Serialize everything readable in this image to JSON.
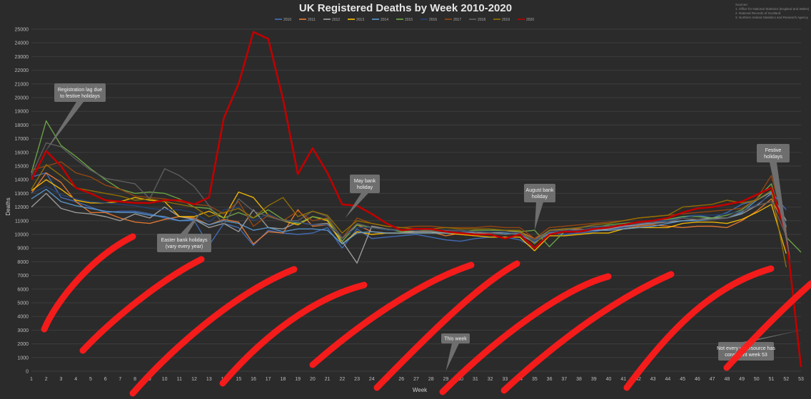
{
  "chart_data": {
    "type": "line",
    "title": "UK Registered Deaths by Week 2010-2020",
    "xlabel": "Week",
    "ylabel": "Deaths",
    "x": [
      1,
      2,
      3,
      4,
      5,
      6,
      7,
      8,
      9,
      10,
      11,
      12,
      13,
      14,
      15,
      16,
      17,
      18,
      19,
      20,
      21,
      22,
      23,
      24,
      25,
      26,
      27,
      28,
      29,
      30,
      31,
      32,
      33,
      34,
      35,
      36,
      37,
      38,
      39,
      40,
      41,
      42,
      43,
      44,
      45,
      46,
      47,
      48,
      49,
      50,
      51,
      52,
      53
    ],
    "ylim": [
      0,
      25000
    ],
    "yticks": [
      0,
      1000,
      2000,
      3000,
      4000,
      5000,
      6000,
      7000,
      8000,
      9000,
      10000,
      11000,
      12000,
      13000,
      14000,
      15000,
      16000,
      17000,
      18000,
      19000,
      20000,
      21000,
      22000,
      23000,
      24000,
      25000
    ],
    "grid": true,
    "legend_position": "top-center",
    "sources": {
      "heading": "Sources:",
      "items": [
        "1. Office for National Statistics (England and Wales)",
        "2. National Records of Scotland",
        "3. Northern Ireland Statistics and Research Agency"
      ]
    },
    "annotations": [
      {
        "text": "Registration lag due to festive holidays",
        "lines": [
          "Registration lag due",
          "to festive holidays"
        ]
      },
      {
        "text": "Easter bank holidays (vary every year)",
        "lines": [
          "Easter bank holidays",
          "(vary every year)"
        ]
      },
      {
        "text": "May bank holiday",
        "lines": [
          "May bank",
          "holiday"
        ]
      },
      {
        "text": "August bank holiday",
        "lines": [
          "August bank",
          "holiday"
        ]
      },
      {
        "text": "Festive holidays",
        "lines": [
          "Festive",
          "holidays"
        ]
      },
      {
        "text": "This week",
        "lines": [
          "This week"
        ]
      },
      {
        "text": "Not every year/source has consistent week 53",
        "lines": [
          "Not every year/source has",
          "consistent week 53"
        ]
      }
    ],
    "series": [
      {
        "name": "2010",
        "color": "#4472c4",
        "values": [
          14200,
          14500,
          12700,
          12400,
          12000,
          11600,
          11700,
          11700,
          11500,
          11200,
          11000,
          11000,
          9200,
          10800,
          10500,
          9200,
          10300,
          10100,
          10000,
          10100,
          10500,
          9000,
          10400,
          9700,
          9800,
          9900,
          10000,
          9800,
          9600,
          9500,
          9700,
          9800,
          9800,
          9600,
          9000,
          10100,
          10000,
          10100,
          10200,
          10400,
          10500,
          10700,
          10900,
          11000,
          11300,
          11400,
          11200,
          11600,
          12200,
          12500,
          13100,
          11800,
          null
        ]
      },
      {
        "name": "2011",
        "color": "#ed7d31",
        "values": [
          13000,
          14500,
          13800,
          12400,
          11600,
          11600,
          11200,
          10900,
          10800,
          11100,
          11300,
          11200,
          10700,
          11100,
          10900,
          9300,
          10200,
          10100,
          11800,
          10600,
          10700,
          9700,
          10700,
          10200,
          10100,
          10100,
          10200,
          10200,
          9900,
          10100,
          10000,
          10100,
          10200,
          10200,
          9700,
          10200,
          10300,
          10400,
          10300,
          10300,
          10400,
          10600,
          10700,
          10600,
          10500,
          10600,
          10600,
          10500,
          11000,
          11700,
          12600,
          10500,
          null
        ]
      },
      {
        "name": "2012",
        "color": "#a5a5a5",
        "values": [
          12000,
          13000,
          11900,
          11600,
          11500,
          11300,
          11000,
          11500,
          11200,
          12000,
          11300,
          11100,
          10500,
          10800,
          10200,
          11800,
          10500,
          10400,
          10900,
          10700,
          10800,
          9500,
          7900,
          10600,
          10400,
          10200,
          10200,
          10200,
          10100,
          10200,
          10100,
          10100,
          10000,
          10100,
          9500,
          10300,
          10400,
          10300,
          10300,
          10400,
          10600,
          10700,
          10800,
          10900,
          11000,
          11100,
          11200,
          11200,
          11500,
          12100,
          13000,
          11000,
          null
        ]
      },
      {
        "name": "2013",
        "color": "#ffc000",
        "values": [
          13200,
          14000,
          13300,
          12500,
          12300,
          12300,
          12400,
          12700,
          12500,
          12400,
          11300,
          11300,
          11700,
          11200,
          13100,
          12700,
          11400,
          11000,
          10700,
          11300,
          11000,
          9300,
          10200,
          10000,
          10100,
          10100,
          10100,
          10100,
          10100,
          10000,
          9900,
          9800,
          9800,
          9800,
          8800,
          9900,
          9900,
          10000,
          10100,
          10100,
          10400,
          10500,
          10500,
          10500,
          10800,
          10900,
          10900,
          10800,
          11100,
          11600,
          12200,
          8600,
          null
        ]
      },
      {
        "name": "2014",
        "color": "#5b9bd5",
        "values": [
          12600,
          13300,
          12400,
          12100,
          11900,
          11700,
          11600,
          11600,
          11400,
          11300,
          11000,
          11100,
          10700,
          11000,
          10800,
          10300,
          10500,
          10200,
          10400,
          10400,
          10300,
          9300,
          10100,
          10200,
          10100,
          10100,
          10100,
          10100,
          10100,
          10100,
          10200,
          10100,
          10100,
          10000,
          9400,
          10100,
          10200,
          10200,
          10300,
          10300,
          10400,
          10500,
          10600,
          10800,
          11000,
          11000,
          11100,
          11200,
          11600,
          12500,
          13100,
          10600,
          null
        ]
      },
      {
        "name": "2015",
        "color": "#70ad47",
        "values": [
          14500,
          18300,
          16500,
          15700,
          14800,
          14000,
          13300,
          13000,
          13100,
          13000,
          12600,
          12000,
          11900,
          11200,
          11600,
          11200,
          11800,
          11100,
          10800,
          11300,
          11100,
          9500,
          10700,
          10500,
          10400,
          10200,
          10300,
          10300,
          10200,
          10200,
          10300,
          10300,
          10300,
          10200,
          10300,
          9100,
          10200,
          10300,
          10500,
          10700,
          10800,
          10900,
          11000,
          11100,
          11300,
          11300,
          11200,
          11400,
          11800,
          12600,
          13700,
          9800,
          8700
        ]
      },
      {
        "name": "2016",
        "color": "#264478",
        "values": [
          13000,
          13500,
          12900,
          12600,
          12400,
          12300,
          12200,
          12100,
          11900,
          11800,
          11800,
          11600,
          10900,
          11800,
          12000,
          11000,
          11500,
          11000,
          10900,
          10700,
          10700,
          9800,
          10500,
          10500,
          10300,
          10300,
          10300,
          10400,
          10300,
          10200,
          10200,
          10200,
          10200,
          10100,
          9500,
          10200,
          10300,
          10300,
          10500,
          10600,
          10700,
          10800,
          11000,
          11000,
          11200,
          11400,
          11400,
          11500,
          11700,
          12200,
          12900,
          10800,
          null
        ]
      },
      {
        "name": "2017",
        "color": "#9e480e",
        "values": [
          14700,
          15000,
          15300,
          14500,
          14200,
          13600,
          13300,
          12800,
          12700,
          12600,
          12400,
          12200,
          12100,
          11500,
          12400,
          10600,
          11400,
          11000,
          11700,
          11000,
          11200,
          9700,
          11200,
          10800,
          10600,
          10500,
          10600,
          10600,
          10500,
          10500,
          10500,
          10600,
          10500,
          10500,
          9700,
          10500,
          10600,
          10700,
          10800,
          10900,
          11000,
          11200,
          11300,
          11400,
          11500,
          11600,
          11700,
          11800,
          11900,
          12600,
          14300,
          10300,
          null
        ]
      },
      {
        "name": "2018",
        "color": "#636363",
        "values": [
          14300,
          16700,
          16400,
          15500,
          14700,
          14100,
          13900,
          13700,
          12600,
          14800,
          14300,
          13500,
          12100,
          10700,
          12600,
          11700,
          11300,
          11000,
          11000,
          11700,
          11300,
          9700,
          10800,
          10500,
          10400,
          10300,
          10400,
          10300,
          10300,
          10300,
          10200,
          10100,
          10000,
          10100,
          9600,
          10300,
          10300,
          10500,
          10600,
          10600,
          10700,
          10800,
          10900,
          10900,
          11200,
          11100,
          11100,
          11200,
          11700,
          12100,
          12400,
          9900,
          null
        ]
      },
      {
        "name": "2019",
        "color": "#997300",
        "values": [
          13300,
          15100,
          14300,
          13400,
          13200,
          13000,
          12800,
          12500,
          12600,
          12400,
          12200,
          12000,
          11300,
          11600,
          11900,
          11200,
          12100,
          12700,
          11300,
          11700,
          11400,
          10100,
          11000,
          10800,
          10600,
          10500,
          10400,
          10400,
          10500,
          10400,
          10400,
          10400,
          10300,
          10300,
          9300,
          10300,
          10400,
          10500,
          10700,
          10800,
          11000,
          11200,
          11300,
          11400,
          12000,
          12100,
          12200,
          12500,
          12300,
          12500,
          13200,
          7600,
          null
        ]
      },
      {
        "name": "2020",
        "color": "#c00000",
        "values": [
          14000,
          16100,
          15000,
          13400,
          13000,
          12500,
          12400,
          12300,
          12300,
          12500,
          12500,
          12200,
          12700,
          18500,
          21000,
          24800,
          24300,
          19900,
          14400,
          16300,
          14500,
          12200,
          12100,
          11500,
          10800,
          10300,
          10400,
          10400,
          10200,
          10100,
          10000,
          10000,
          9700,
          10000,
          9000,
          10000,
          10200,
          10200,
          10400,
          10500,
          10700,
          10900,
          11000,
          11200,
          11600,
          11900,
          12000,
          12200,
          12400,
          12900,
          13400,
          10000,
          300
        ]
      }
    ]
  },
  "overlay": {
    "stroke_color": "#ff1a1a"
  }
}
